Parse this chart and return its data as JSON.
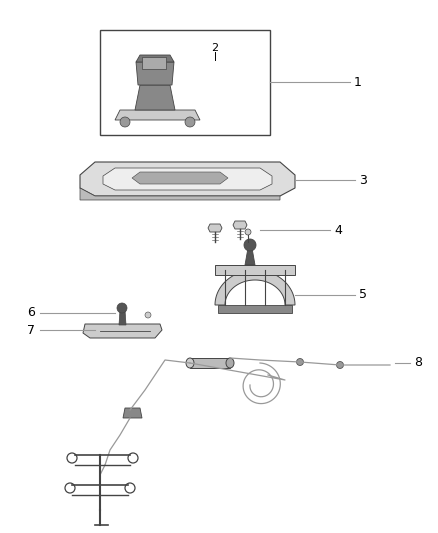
{
  "background_color": "#ffffff",
  "fig_width": 4.38,
  "fig_height": 5.33,
  "dpi": 100,
  "line_color": "#999999",
  "dark_color": "#555555",
  "border_color": "#444444",
  "part_fill": "#cccccc",
  "part_dark": "#888888"
}
